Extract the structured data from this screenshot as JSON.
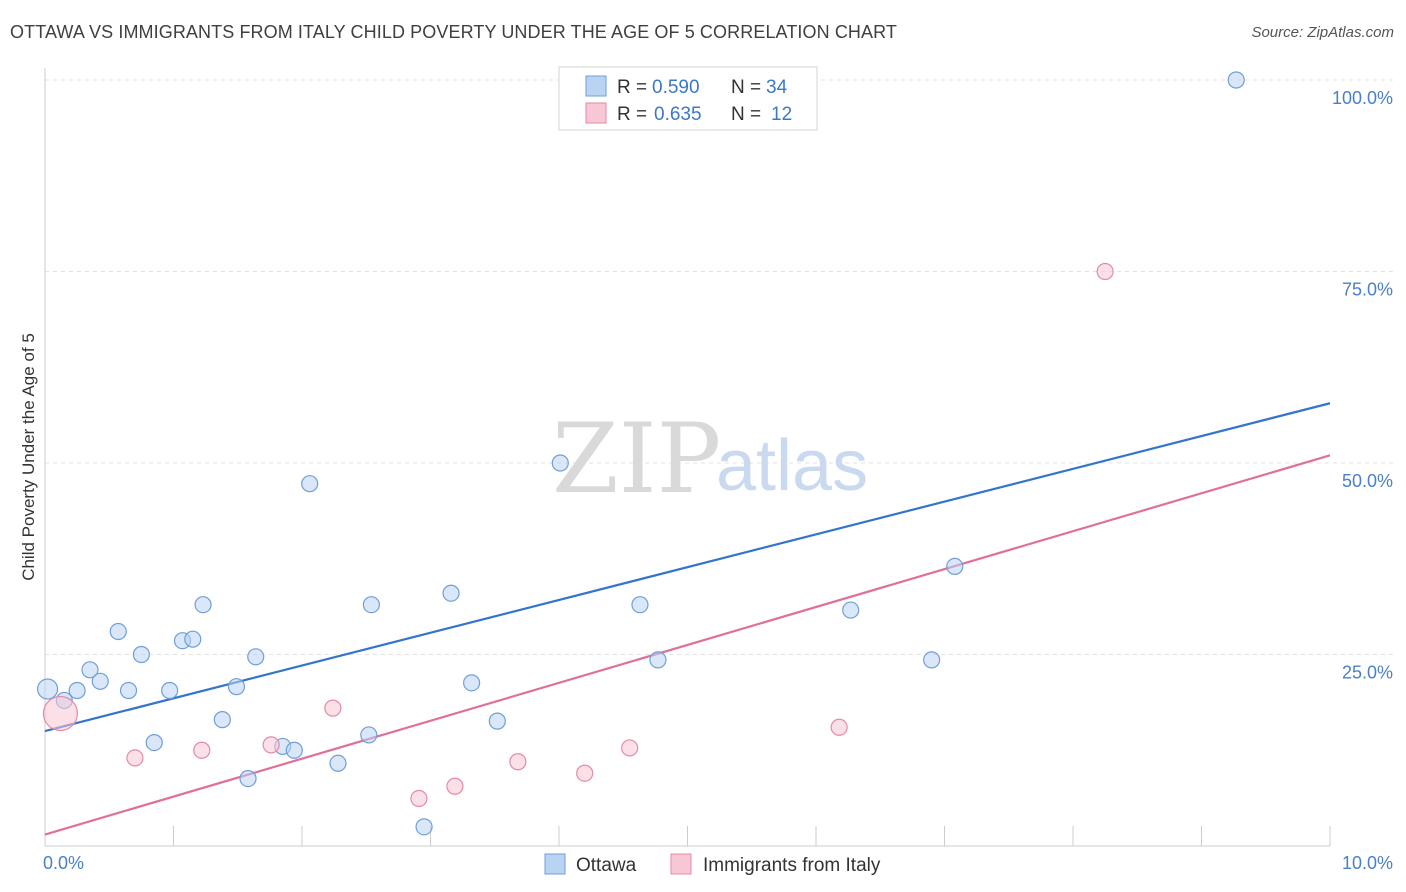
{
  "title": "OTTAWA VS IMMIGRANTS FROM ITALY CHILD POVERTY UNDER THE AGE OF 5 CORRELATION CHART",
  "source": "Source: ZipAtlas.com",
  "watermark": {
    "zip": "ZIP",
    "atlas": "atlas"
  },
  "colors": {
    "ottawa_fill": "#b9d3f3",
    "ottawa_stroke": "#6f9fd8",
    "ottawa_line": "#3375cc",
    "italy_fill": "#f8c7d6",
    "italy_stroke": "#e68aa6",
    "italy_line": "#e07098",
    "grid": "#e3e3e3",
    "label": "#4a7fc9"
  },
  "legend": {
    "rows": [
      {
        "r_label": "R =",
        "r_value": "0.590",
        "n_label": "N =",
        "n_value": "34"
      },
      {
        "r_label": "R =",
        "r_value": "0.635",
        "n_label": "N =",
        "n_value": "12"
      }
    ]
  },
  "chart_data": {
    "type": "scatter",
    "xlabel": "",
    "ylabel": "Child Poverty Under the Age of 5",
    "xlim": [
      0,
      10
    ],
    "ylim": [
      0,
      100
    ],
    "x_tick_labels": [
      "0.0%",
      "10.0%"
    ],
    "y_tick_labels": [
      "25.0%",
      "50.0%",
      "75.0%",
      "100.0%"
    ],
    "y_ticks": [
      25,
      50,
      75,
      100
    ],
    "legend_position": "top-center",
    "series": [
      {
        "name": "Ottawa",
        "points": [
          [
            0.02,
            20.5
          ],
          [
            0.15,
            19.0
          ],
          [
            0.25,
            20.3
          ],
          [
            0.35,
            23.0
          ],
          [
            0.43,
            21.5
          ],
          [
            0.57,
            28.0
          ],
          [
            0.65,
            20.3
          ],
          [
            0.75,
            25.0
          ],
          [
            0.85,
            13.5
          ],
          [
            0.97,
            20.3
          ],
          [
            1.07,
            26.8
          ],
          [
            1.15,
            27.0
          ],
          [
            1.23,
            31.5
          ],
          [
            1.38,
            16.5
          ],
          [
            1.49,
            20.8
          ],
          [
            1.58,
            8.8
          ],
          [
            1.64,
            24.7
          ],
          [
            1.85,
            13.0
          ],
          [
            1.94,
            12.5
          ],
          [
            2.06,
            47.3
          ],
          [
            2.28,
            10.8
          ],
          [
            2.52,
            14.5
          ],
          [
            2.54,
            31.5
          ],
          [
            2.95,
            2.5
          ],
          [
            3.16,
            33.0
          ],
          [
            3.32,
            21.3
          ],
          [
            3.52,
            16.3
          ],
          [
            4.01,
            50.0
          ],
          [
            4.63,
            31.5
          ],
          [
            4.77,
            24.3
          ],
          [
            6.27,
            30.8
          ],
          [
            6.9,
            24.3
          ],
          [
            7.08,
            36.5
          ],
          [
            9.27,
            100.0
          ]
        ],
        "trend": {
          "x": [
            0,
            10
          ],
          "y": [
            15.0,
            57.8
          ]
        }
      },
      {
        "name": "Immigrants from Italy",
        "points": [
          [
            0.12,
            17.3
          ],
          [
            0.7,
            11.5
          ],
          [
            1.22,
            12.5
          ],
          [
            1.76,
            13.2
          ],
          [
            2.24,
            18.0
          ],
          [
            2.91,
            6.2
          ],
          [
            3.19,
            7.8
          ],
          [
            3.68,
            11.0
          ],
          [
            4.2,
            9.5
          ],
          [
            4.55,
            12.8
          ],
          [
            6.18,
            15.5
          ],
          [
            8.25,
            75.0
          ]
        ],
        "trend": {
          "x": [
            0,
            10
          ],
          "y": [
            1.5,
            51.0
          ]
        }
      }
    ]
  },
  "bottom_legend": {
    "items": [
      {
        "label": "Ottawa"
      },
      {
        "label": "Immigrants from Italy"
      }
    ]
  }
}
